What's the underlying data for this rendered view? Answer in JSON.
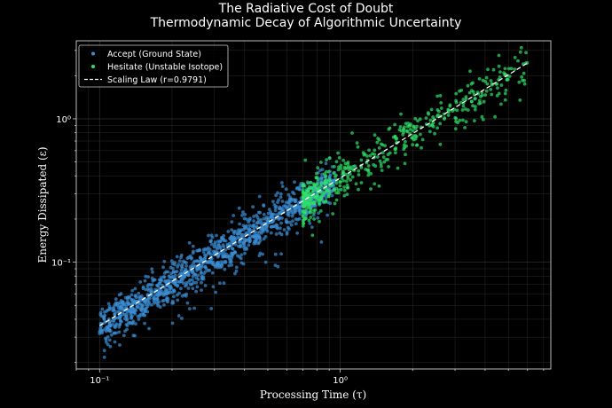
{
  "chart_data": {
    "type": "scatter",
    "title": "The Radiative Cost of Doubt",
    "subtitle": "Thermodynamic Decay of Algorithmic Uncertainty",
    "xlabel": "Processing Time (τ)",
    "ylabel": "Energy Dissipated (ε)",
    "xscale": "log",
    "yscale": "log",
    "xlim": [
      0.08,
      7.5
    ],
    "ylim": [
      0.018,
      3.5
    ],
    "grid": true,
    "legend_position": "top-left",
    "x_ticks": [
      {
        "value": 0.1,
        "label": "10⁻¹"
      },
      {
        "value": 1,
        "label": "10⁰"
      }
    ],
    "y_ticks": [
      {
        "value": 0.1,
        "label": "10⁻¹"
      },
      {
        "value": 1,
        "label": "10⁰"
      }
    ],
    "colors": {
      "background": "#000000",
      "accept": "#3a8fd6",
      "hesitate": "#2fe06a",
      "fit": "#ffffff",
      "grid": "#2a2a2a",
      "frame": "#cfcfcf"
    },
    "series": [
      {
        "name": "Accept (Ground State)",
        "color": "#3a8fd6",
        "x_range": [
          0.1,
          0.95
        ],
        "point_count": 1200
      },
      {
        "name": "Hesitate (Unstable Isotope)",
        "color": "#2fe06a",
        "x_range": [
          0.7,
          6.0
        ],
        "point_count": 500
      }
    ],
    "fit_line": {
      "name": "Scaling Law (r=0.9791)",
      "x": [
        0.1,
        6.0
      ],
      "y": [
        0.036,
        2.45
      ]
    }
  }
}
